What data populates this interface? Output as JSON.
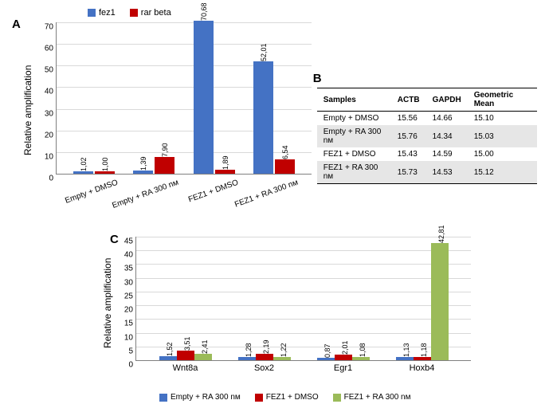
{
  "panelA": {
    "label": "A",
    "type": "bar",
    "ylabel": "Relative amplification",
    "legend": [
      {
        "name": "fez1",
        "color": "#4472c4"
      },
      {
        "name": "rar beta",
        "color": "#c00000"
      }
    ],
    "ylim": [
      0,
      70
    ],
    "ytick_step": 10,
    "grid_color": "#d9d9d9",
    "background_color": "#ffffff",
    "categories": [
      "Empty + DMSO",
      "Empty + RA 300 nм",
      "FEZ1 + DMSO",
      "FEZ1 + RA 300 nм"
    ],
    "series": {
      "fez1": {
        "color": "#4472c4",
        "values": [
          1.02,
          1.39,
          70.68,
          52.01
        ],
        "labels": [
          "1,02",
          "1,39",
          "70,68",
          "52,01"
        ]
      },
      "rar_beta": {
        "color": "#c00000",
        "values": [
          1.0,
          7.9,
          1.89,
          6.54
        ],
        "labels": [
          "1,00",
          "7,90",
          "1,89",
          "6,54"
        ]
      }
    },
    "label_fontsize": 11,
    "xlabel_rotation": -20
  },
  "panelB": {
    "label": "B",
    "type": "table",
    "columns": [
      "Samples",
      "ACTB",
      "GAPDH",
      "Geometric Mean"
    ],
    "rows": [
      [
        "Empty + DMSO",
        "15.56",
        "14.66",
        "15.10"
      ],
      [
        "Empty + RA 300 nм",
        "15.76",
        "14.34",
        "15.03"
      ],
      [
        "FEZ1 + DMSO",
        "15.43",
        "14.59",
        "15.00"
      ],
      [
        "FEZ1 + RA 300 nм",
        "15.73",
        "14.53",
        "15.12"
      ]
    ],
    "alt_row_color": "#e6e6e6",
    "fontsize": 10
  },
  "panelC": {
    "label": "C",
    "type": "bar",
    "ylabel": "Relative amplification",
    "legend": [
      {
        "name": "Empty + RA 300 nм",
        "color": "#4472c4"
      },
      {
        "name": "FEZ1 + DMSO",
        "color": "#c00000"
      },
      {
        "name": "FEZ1 + RA 300 nм",
        "color": "#9bbb59"
      }
    ],
    "ylim": [
      0,
      45
    ],
    "ytick_step": 5,
    "grid_color": "#d9d9d9",
    "background_color": "#ffffff",
    "categories": [
      "Wnt8a",
      "Sox2",
      "Egr1",
      "Hoxb4"
    ],
    "series": {
      "s1": {
        "color": "#4472c4",
        "values": [
          1.52,
          1.28,
          0.87,
          1.13
        ],
        "labels": [
          "1,52",
          "1,28",
          "0,87",
          "1,13"
        ]
      },
      "s2": {
        "color": "#c00000",
        "values": [
          3.51,
          2.19,
          2.01,
          1.18
        ],
        "labels": [
          "3,51",
          "2,19",
          "2,01",
          "1,18"
        ]
      },
      "s3": {
        "color": "#9bbb59",
        "values": [
          2.41,
          1.22,
          1.08,
          42.81
        ],
        "labels": [
          "2,41",
          "1,22",
          "1,08",
          "42,81"
        ]
      }
    },
    "label_fontsize": 11
  }
}
